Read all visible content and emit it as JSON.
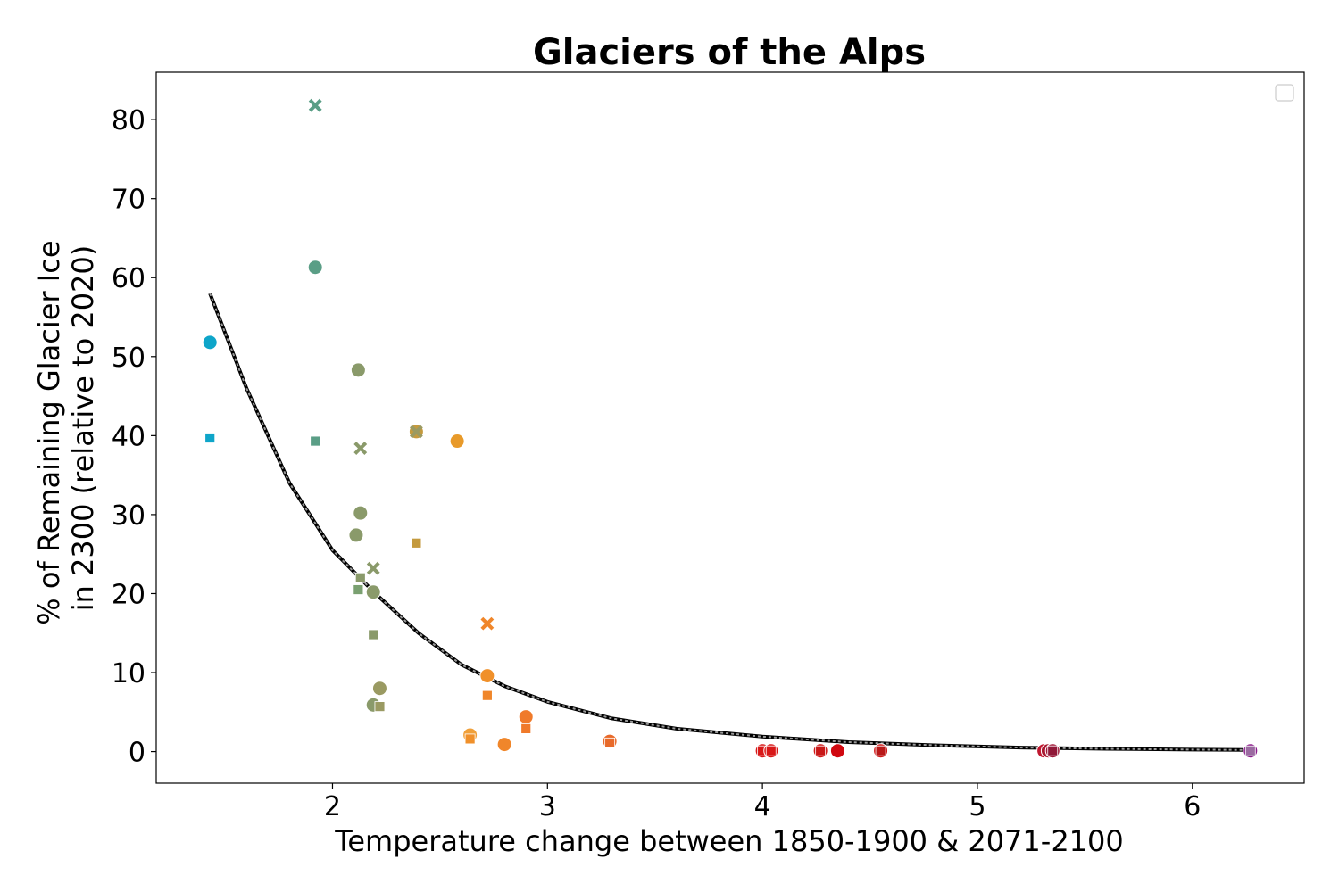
{
  "chart_data": {
    "type": "scatter",
    "title": "Glaciers of the Alps",
    "xlabel": "Temperature change between 1850-1900 & 2071-2100",
    "ylabel_lines": [
      "% of Remaining Glacier Ice",
      "in 2300 (relative to 2020)"
    ],
    "xlim": [
      1.18,
      6.52
    ],
    "ylim": [
      -4,
      86
    ],
    "xticks": [
      2,
      3,
      4,
      5,
      6
    ],
    "yticks": [
      0,
      10,
      20,
      30,
      40,
      50,
      60,
      70,
      80
    ],
    "grid": false,
    "legend": {
      "placement": "top-right",
      "entries": []
    },
    "fit_curve": {
      "x": [
        1.43,
        1.6,
        1.8,
        2.0,
        2.2,
        2.4,
        2.6,
        2.8,
        3.0,
        3.3,
        3.6,
        4.0,
        4.4,
        4.8,
        5.2,
        5.6,
        6.0,
        6.27
      ],
      "y": [
        58,
        46,
        34,
        25.5,
        20,
        15,
        11,
        8.3,
        6.3,
        4.2,
        2.9,
        1.9,
        1.2,
        0.8,
        0.5,
        0.35,
        0.25,
        0.2
      ]
    },
    "points": [
      {
        "x": 1.43,
        "y": 51.8,
        "marker": "circle",
        "color": "#0ea5c9"
      },
      {
        "x": 1.43,
        "y": 39.7,
        "marker": "square",
        "color": "#0ea5c9"
      },
      {
        "x": 1.92,
        "y": 81.8,
        "marker": "x",
        "color": "#5a9e86"
      },
      {
        "x": 1.92,
        "y": 61.3,
        "marker": "circle",
        "color": "#5a9e86"
      },
      {
        "x": 1.92,
        "y": 39.3,
        "marker": "square",
        "color": "#5a9e86"
      },
      {
        "x": 2.12,
        "y": 48.3,
        "marker": "circle",
        "color": "#8a9a6a"
      },
      {
        "x": 2.13,
        "y": 38.4,
        "marker": "x",
        "color": "#8a9a6a"
      },
      {
        "x": 2.13,
        "y": 30.2,
        "marker": "circle",
        "color": "#8a9a6a"
      },
      {
        "x": 2.11,
        "y": 27.4,
        "marker": "circle",
        "color": "#8a9a6a"
      },
      {
        "x": 2.19,
        "y": 23.2,
        "marker": "x",
        "color": "#8a9a6a"
      },
      {
        "x": 2.13,
        "y": 22.0,
        "marker": "square",
        "color": "#8a9a6a"
      },
      {
        "x": 2.12,
        "y": 20.5,
        "marker": "square",
        "color": "#7aa070"
      },
      {
        "x": 2.19,
        "y": 20.2,
        "marker": "circle",
        "color": "#8a9a6a"
      },
      {
        "x": 2.19,
        "y": 14.8,
        "marker": "square",
        "color": "#8a9a6a"
      },
      {
        "x": 2.22,
        "y": 8.0,
        "marker": "circle",
        "color": "#9a9a62"
      },
      {
        "x": 2.19,
        "y": 5.9,
        "marker": "circle",
        "color": "#8a9a6a"
      },
      {
        "x": 2.22,
        "y": 5.7,
        "marker": "square",
        "color": "#9a9a62"
      },
      {
        "x": 2.39,
        "y": 40.5,
        "marker": "circle",
        "color": "#c49a3e"
      },
      {
        "x": 2.39,
        "y": 40.5,
        "marker": "x",
        "color": "#9a9a62"
      },
      {
        "x": 2.39,
        "y": 26.4,
        "marker": "square",
        "color": "#c49a3e"
      },
      {
        "x": 2.58,
        "y": 39.3,
        "marker": "circle",
        "color": "#e89a2a"
      },
      {
        "x": 2.72,
        "y": 16.2,
        "marker": "x",
        "color": "#f0862a"
      },
      {
        "x": 2.72,
        "y": 9.6,
        "marker": "circle",
        "color": "#f0902a"
      },
      {
        "x": 2.72,
        "y": 7.1,
        "marker": "square",
        "color": "#f0862a"
      },
      {
        "x": 2.64,
        "y": 2.1,
        "marker": "circle",
        "color": "#f0a03a"
      },
      {
        "x": 2.64,
        "y": 1.6,
        "marker": "square",
        "color": "#f0902a"
      },
      {
        "x": 2.8,
        "y": 0.9,
        "marker": "circle",
        "color": "#f0862a"
      },
      {
        "x": 2.9,
        "y": 4.4,
        "marker": "circle",
        "color": "#f07a2a"
      },
      {
        "x": 2.9,
        "y": 2.9,
        "marker": "square",
        "color": "#f07a2a"
      },
      {
        "x": 3.29,
        "y": 1.3,
        "marker": "circle",
        "color": "#e86a2a"
      },
      {
        "x": 3.29,
        "y": 1.1,
        "marker": "square",
        "color": "#e86a2a"
      },
      {
        "x": 4.0,
        "y": 0.1,
        "marker": "circle",
        "color": "#d81818"
      },
      {
        "x": 4.0,
        "y": 0.1,
        "marker": "square",
        "color": "#d81818"
      },
      {
        "x": 4.04,
        "y": 0.1,
        "marker": "circle",
        "color": "#d81818"
      },
      {
        "x": 4.04,
        "y": 0.1,
        "marker": "square",
        "color": "#d81818"
      },
      {
        "x": 4.27,
        "y": 0.1,
        "marker": "circle",
        "color": "#d01818"
      },
      {
        "x": 4.27,
        "y": 0.1,
        "marker": "square",
        "color": "#c81818"
      },
      {
        "x": 4.35,
        "y": 0.1,
        "marker": "circle",
        "color": "#d00810"
      },
      {
        "x": 4.55,
        "y": 0.1,
        "marker": "circle",
        "color": "#d01818"
      },
      {
        "x": 4.55,
        "y": 0.1,
        "marker": "square",
        "color": "#b81818"
      },
      {
        "x": 5.31,
        "y": 0.1,
        "marker": "circle",
        "color": "#c01830"
      },
      {
        "x": 5.33,
        "y": 0.1,
        "marker": "circle",
        "color": "#a81830"
      },
      {
        "x": 5.35,
        "y": 0.1,
        "marker": "circle",
        "color": "#a01838"
      },
      {
        "x": 5.35,
        "y": 0.1,
        "marker": "square",
        "color": "#901838"
      },
      {
        "x": 6.27,
        "y": 0.1,
        "marker": "circle",
        "color": "#8a1a8a"
      },
      {
        "x": 6.27,
        "y": 0.1,
        "marker": "square",
        "color": "#9a6aa0"
      }
    ]
  }
}
